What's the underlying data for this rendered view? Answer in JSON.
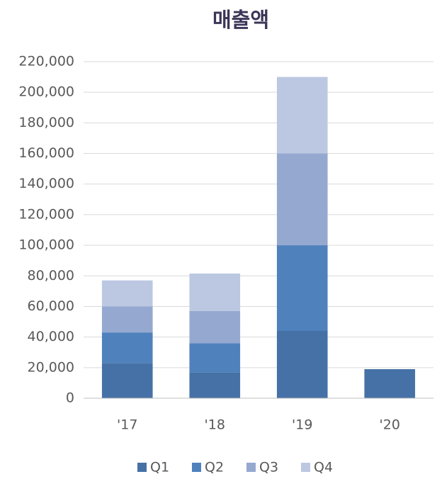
{
  "chart_data": {
    "type": "bar",
    "stacked": true,
    "title": "매출액",
    "categories": [
      "'17",
      "'18",
      "'19",
      "'20"
    ],
    "series": [
      {
        "name": "Q1",
        "color": "#4671a6",
        "values": [
          23000,
          17000,
          44000,
          19000
        ]
      },
      {
        "name": "Q2",
        "color": "#4f81bd",
        "values": [
          20000,
          19000,
          56000,
          null
        ]
      },
      {
        "name": "Q3",
        "color": "#95a9d0",
        "values": [
          17000,
          21000,
          60000,
          null
        ]
      },
      {
        "name": "Q4",
        "color": "#bcc8e2",
        "values": [
          17000,
          24500,
          50000,
          null
        ]
      }
    ],
    "ylim": [
      0,
      220000
    ],
    "yticks": [
      0,
      {
        "value": 20000,
        "label": "20,000"
      },
      {
        "value": 40000,
        "label": "40,000"
      },
      {
        "value": 60000,
        "label": "60,000"
      },
      {
        "value": 80000,
        "label": "80,000"
      },
      {
        "value": 100000,
        "label": "100,000"
      },
      {
        "value": 120000,
        "label": "120,000"
      },
      {
        "value": 140000,
        "label": "140,000"
      },
      {
        "value": 160000,
        "label": "160,000"
      },
      {
        "value": 180000,
        "label": "180,000"
      },
      {
        "value": 200000,
        "label": "200,000"
      },
      {
        "value": 220000,
        "label": "220,000"
      }
    ],
    "grid": true,
    "legend": "bottom"
  }
}
